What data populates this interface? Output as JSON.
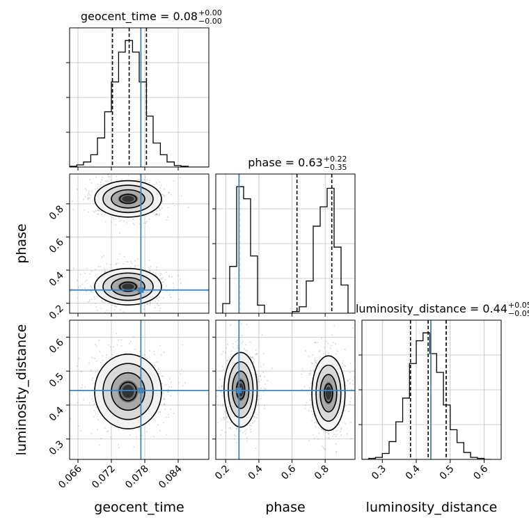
{
  "colors": {
    "truth": "#4682b4",
    "hist": "#000000",
    "grid": "#c0c0c0",
    "points": "#7a7a7a"
  },
  "chart_data": {
    "type": "corner",
    "parameters": [
      "geocent_time",
      "phase",
      "luminosity_distance"
    ],
    "axis_labels": {
      "x": [
        "geocent_time",
        "phase",
        "luminosity_distance"
      ],
      "y": [
        "phase",
        "luminosity_distance"
      ]
    },
    "ranges": {
      "geocent_time": [
        0.0645,
        0.0895
      ],
      "phase": [
        0.14,
        0.98
      ],
      "luminosity_distance": [
        0.24,
        0.65
      ]
    },
    "ticks": {
      "geocent_time": {
        "values": [
          0.066,
          0.072,
          0.078,
          0.084
        ],
        "labels": [
          "0.066",
          "0.072",
          "0.078",
          "0.084"
        ]
      },
      "phase": {
        "values": [
          0.2,
          0.4,
          0.6,
          0.8
        ],
        "labels": [
          "0.2",
          "0.4",
          "0.6",
          "0.8"
        ]
      },
      "luminosity_distance": {
        "values": [
          0.3,
          0.4,
          0.5,
          0.6
        ],
        "labels": [
          "0.3",
          "0.4",
          "0.5",
          "0.6"
        ]
      }
    },
    "truths": {
      "geocent_time": 0.0773,
      "phase": 0.28,
      "luminosity_distance": 0.443
    },
    "titles": [
      {
        "param": "geocent_time",
        "label": "geocent_time",
        "median": "0.08",
        "plus": "+0.00",
        "minus": "−0.00"
      },
      {
        "param": "phase",
        "label": "phase",
        "median": "0.63",
        "plus": "+0.22",
        "minus": "−0.35"
      },
      {
        "param": "luminosity_distance",
        "label": "luminosity_distance",
        "median": "0.44",
        "plus": "+0.05",
        "minus": "−0.05"
      }
    ],
    "quantiles": {
      "geocent_time": [
        0.0722,
        0.0752,
        0.0783
      ],
      "phase": [
        0.28,
        0.63,
        0.84
      ],
      "luminosity_distance": [
        0.383,
        0.435,
        0.488
      ]
    },
    "histograms": {
      "geocent_time": {
        "edges": [
          0.0645,
          0.0658,
          0.067,
          0.0683,
          0.0695,
          0.0708,
          0.072,
          0.0733,
          0.0745,
          0.0758,
          0.077,
          0.0783,
          0.0795,
          0.0808,
          0.082,
          0.0833,
          0.0845,
          0.0858,
          0.087,
          0.0883,
          0.0895
        ],
        "counts": [
          1,
          3,
          7,
          17,
          40,
          76,
          117,
          158,
          174,
          158,
          117,
          70,
          33,
          17,
          7,
          2,
          1,
          0,
          0,
          0
        ]
      },
      "phase": {
        "edges": [
          0.14,
          0.182,
          0.224,
          0.266,
          0.308,
          0.35,
          0.392,
          0.434,
          0.476,
          0.518,
          0.56,
          0.602,
          0.644,
          0.686,
          0.728,
          0.77,
          0.812,
          0.854,
          0.896,
          0.938,
          0.98
        ],
        "counts": [
          0,
          12,
          58,
          157,
          142,
          71,
          10,
          0,
          0,
          0,
          0,
          2,
          8,
          40,
          108,
          132,
          155,
          82,
          35,
          0
        ]
      },
      "luminosity_distance": {
        "edges": [
          0.24,
          0.26,
          0.28,
          0.3,
          0.32,
          0.34,
          0.36,
          0.38,
          0.4,
          0.42,
          0.44,
          0.46,
          0.48,
          0.5,
          0.52,
          0.54,
          0.56,
          0.58,
          0.6,
          0.62
        ],
        "counts": [
          0,
          1,
          2,
          6,
          18,
          38,
          62,
          97,
          120,
          128,
          107,
          88,
          55,
          30,
          17,
          7,
          2,
          1,
          0
        ]
      }
    },
    "density_modes": [
      {
        "x": "geocent_time",
        "y": "phase",
        "centers": [
          [
            0.075,
            0.83
          ],
          [
            0.075,
            0.3
          ]
        ],
        "sigma": [
          0.003,
          0.055
        ]
      },
      {
        "x": "geocent_time",
        "y": "luminosity_distance",
        "centers": [
          [
            0.075,
            0.44
          ]
        ],
        "sigma": [
          0.003,
          0.055
        ]
      },
      {
        "x": "phase",
        "y": "luminosity_distance",
        "centers": [
          [
            0.29,
            0.445
          ],
          [
            0.82,
            0.435
          ]
        ],
        "sigma": [
          0.05,
          0.055
        ]
      }
    ],
    "contour_levels": [
      "0.5σ",
      "1σ",
      "1.5σ",
      "2σ"
    ]
  }
}
